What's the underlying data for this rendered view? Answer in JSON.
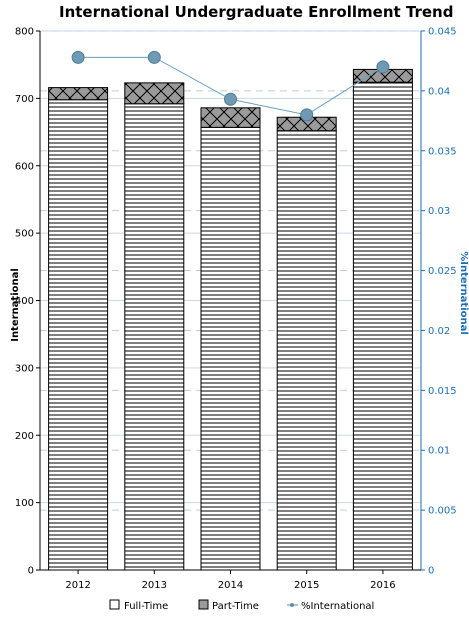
{
  "chart_data": {
    "type": "bar",
    "title": "International Undergraduate Enrollment Trend",
    "categories": [
      "2012",
      "2013",
      "2014",
      "2015",
      "2016"
    ],
    "series": [
      {
        "name": "Full-Time",
        "kind": "bar",
        "axis": "left",
        "pattern": "horizontal-lines",
        "color": "#ffffff",
        "values": [
          698,
          692,
          657,
          652,
          724
        ]
      },
      {
        "name": "Part-Time",
        "kind": "bar",
        "axis": "left",
        "pattern": "crosshatch",
        "color": "#9a9a9a",
        "values": [
          18,
          31,
          29,
          20,
          19
        ]
      },
      {
        "name": "%International",
        "kind": "line",
        "axis": "right",
        "color": "#5f8fa8",
        "values": [
          0.0428,
          0.0428,
          0.0393,
          0.038,
          0.042
        ]
      }
    ],
    "ylabel": "International",
    "y2label": "%International",
    "ylim": [
      0,
      800
    ],
    "yticks": [
      "0",
      "100",
      "200",
      "300",
      "400",
      "500",
      "600",
      "700",
      "800"
    ],
    "y2lim": [
      0,
      0.045
    ],
    "y2ticks": [
      "0",
      "0.005",
      "0.01",
      "0.015",
      "0.02",
      "0.025",
      "0.03",
      "0.035",
      "0.04",
      "0.045"
    ],
    "grid": true,
    "legend_position": "bottom",
    "colors": {
      "left_axis": "#000000",
      "right_axis": "#1f6fb5",
      "gridline": "#b8d0e4"
    }
  }
}
